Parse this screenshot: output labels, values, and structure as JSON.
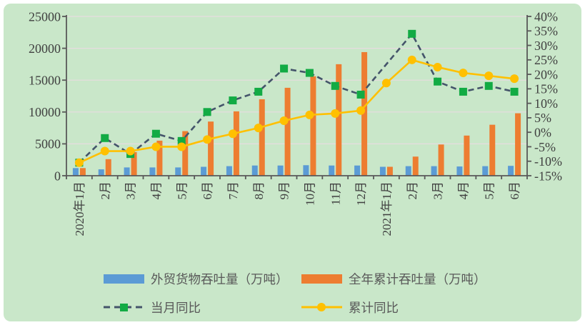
{
  "chart_data": {
    "type": "combo",
    "title": "",
    "categories": [
      "2020年1月",
      "2月",
      "3月",
      "4月",
      "5月",
      "6月",
      "7月",
      "8月",
      "9月",
      "10月",
      "11月",
      "12月",
      "2021年1月",
      "2月",
      "3月",
      "4月",
      "5月",
      "6月"
    ],
    "series": [
      {
        "name": "外贸货物吞吐量（万吨）",
        "type": "bar",
        "axis": "left",
        "color": "#5b9bd5",
        "values": [
          1200,
          1000,
          1300,
          1300,
          1300,
          1400,
          1500,
          1600,
          1600,
          1650,
          1600,
          1600,
          1400,
          1500,
          1500,
          1450,
          1500,
          1550
        ]
      },
      {
        "name": "全年累计吞吐量（万吨）",
        "type": "bar",
        "axis": "left",
        "color": "#ed7d31",
        "values": [
          1200,
          2600,
          3700,
          5500,
          7000,
          8500,
          10100,
          12000,
          13800,
          15600,
          17500,
          19400,
          1400,
          3000,
          4900,
          6300,
          8000,
          9800
        ]
      },
      {
        "name": "当月同比",
        "type": "line",
        "dash": "dashed",
        "axis": "right",
        "line_color": "#44546a",
        "marker": "square",
        "marker_color": "#12ab44",
        "values": [
          -10.5,
          -2,
          -7.5,
          -0.5,
          -3,
          7,
          11,
          14,
          22,
          20.5,
          16,
          13,
          null,
          34,
          17.5,
          14,
          16,
          14
        ]
      },
      {
        "name": "累计同比",
        "type": "line",
        "dash": "solid",
        "axis": "right",
        "line_color": "#ffc000",
        "marker": "circle",
        "marker_color": "#ffc000",
        "values": [
          -10.5,
          -6.5,
          -6.5,
          -5,
          -5,
          -2.5,
          -0.5,
          1.5,
          4,
          6,
          6.5,
          7.5,
          17,
          25,
          22.5,
          20.5,
          19.5,
          18.5
        ]
      }
    ],
    "left_axis": {
      "min": 0,
      "max": 25000,
      "ticks": [
        0,
        5000,
        10000,
        15000,
        20000,
        25000
      ]
    },
    "right_axis": {
      "min": -15,
      "max": 40,
      "ticks": [
        "-15%",
        "-10%",
        "-5%",
        "0%",
        "5%",
        "10%",
        "15%",
        "20%",
        "25%",
        "30%",
        "35%",
        "40%"
      ]
    },
    "grid": "horizontal",
    "legend_position": "bottom"
  },
  "colors": {
    "background": "#c9e7c9",
    "axis": "#595959",
    "grid": "#e7dce0",
    "tick_text": "#404040",
    "legend_text": "#595959"
  }
}
